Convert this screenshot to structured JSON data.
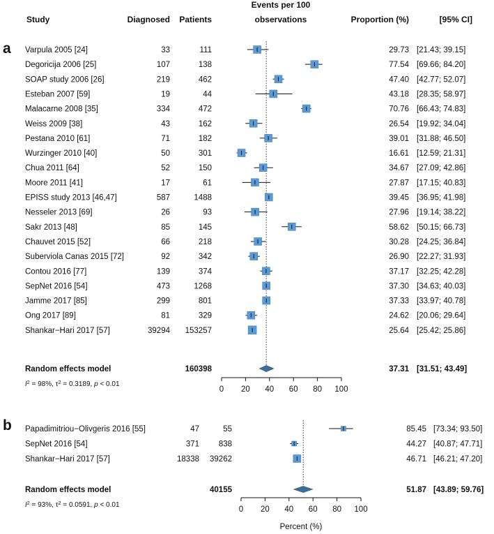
{
  "chart_data": [
    {
      "type": "forest",
      "panel_label": "a",
      "headers": {
        "study": "Study",
        "diagnosed": "Diagnosed",
        "patients": "Patients",
        "events_line1": "Events per 100",
        "events_line2": "observations",
        "proportion": "Proportion (%)",
        "ci": "[95% CI]"
      },
      "studies": [
        {
          "name": "Varpula 2005",
          "ref": "[24]",
          "diagnosed": "33",
          "patients": "111",
          "proportion": 29.73,
          "lower": 21.43,
          "upper": 39.15,
          "proportion_text": "29.73",
          "ci_text": "[21.43; 39.15]"
        },
        {
          "name": "Degoricija 2006",
          "ref": "[25]",
          "diagnosed": "107",
          "patients": "138",
          "proportion": 77.54,
          "lower": 69.66,
          "upper": 84.2,
          "proportion_text": "77.54",
          "ci_text": "[69.66; 84.20]"
        },
        {
          "name": "SOAP study 2006",
          "ref": "[26]",
          "diagnosed": "219",
          "patients": "462",
          "proportion": 47.4,
          "lower": 42.77,
          "upper": 52.07,
          "proportion_text": "47.40",
          "ci_text": "[42.77; 52.07]"
        },
        {
          "name": "Esteban 2007",
          "ref": "[59]",
          "diagnosed": "19",
          "patients": "44",
          "proportion": 43.18,
          "lower": 28.35,
          "upper": 58.97,
          "proportion_text": "43.18",
          "ci_text": "[28.35; 58.97]"
        },
        {
          "name": "Malacarne 2008",
          "ref": "[35]",
          "diagnosed": "334",
          "patients": "472",
          "proportion": 70.76,
          "lower": 66.43,
          "upper": 74.83,
          "proportion_text": "70.76",
          "ci_text": "[66.43; 74.83]"
        },
        {
          "name": "Weiss 2009",
          "ref": "[38]",
          "diagnosed": "43",
          "patients": "162",
          "proportion": 26.54,
          "lower": 19.92,
          "upper": 34.04,
          "proportion_text": "26.54",
          "ci_text": "[19.92; 34.04]"
        },
        {
          "name": "Pestana 2010",
          "ref": "[61]",
          "diagnosed": "71",
          "patients": "182",
          "proportion": 39.01,
          "lower": 31.88,
          "upper": 46.5,
          "proportion_text": "39.01",
          "ci_text": "[31.88; 46.50]"
        },
        {
          "name": "Wurzinger 2010",
          "ref": "[40]",
          "diagnosed": "50",
          "patients": "301",
          "proportion": 16.61,
          "lower": 12.59,
          "upper": 21.31,
          "proportion_text": "16.61",
          "ci_text": "[12.59; 21.31]"
        },
        {
          "name": "Chua 2011",
          "ref": "[64]",
          "diagnosed": "52",
          "patients": "150",
          "proportion": 34.67,
          "lower": 27.09,
          "upper": 42.86,
          "proportion_text": "34.67",
          "ci_text": "[27.09; 42.86]"
        },
        {
          "name": "Moore 2011",
          "ref": "[41]",
          "diagnosed": "17",
          "patients": "61",
          "proportion": 27.87,
          "lower": 17.15,
          "upper": 40.83,
          "proportion_text": "27.87",
          "ci_text": "[17.15; 40.83]"
        },
        {
          "name": "EPISS study 2013",
          "ref": "[46,47]",
          "diagnosed": "587",
          "patients": "1488",
          "proportion": 39.45,
          "lower": 36.95,
          "upper": 41.98,
          "proportion_text": "39.45",
          "ci_text": "[36.95; 41.98]"
        },
        {
          "name": "Nesseler 2013",
          "ref": "[69]",
          "diagnosed": "26",
          "patients": "93",
          "proportion": 27.96,
          "lower": 19.14,
          "upper": 38.22,
          "proportion_text": "27.96",
          "ci_text": "[19.14; 38.22]"
        },
        {
          "name": "Sakr 2013",
          "ref": "[48]",
          "diagnosed": "85",
          "patients": "145",
          "proportion": 58.62,
          "lower": 50.15,
          "upper": 66.73,
          "proportion_text": "58.62",
          "ci_text": "[50.15; 66.73]"
        },
        {
          "name": "Chauvet 2015",
          "ref": "[52]",
          "diagnosed": "66",
          "patients": "218",
          "proportion": 30.28,
          "lower": 24.25,
          "upper": 36.84,
          "proportion_text": "30.28",
          "ci_text": "[24.25; 36.84]"
        },
        {
          "name": "Suberviola Canas 2015",
          "ref": "[72]",
          "diagnosed": "92",
          "patients": "342",
          "proportion": 26.9,
          "lower": 22.27,
          "upper": 31.93,
          "proportion_text": "26.90",
          "ci_text": "[22.27; 31.93]"
        },
        {
          "name": "Contou 2016",
          "ref": "[77]",
          "diagnosed": "139",
          "patients": "374",
          "proportion": 37.17,
          "lower": 32.25,
          "upper": 42.28,
          "proportion_text": "37.17",
          "ci_text": "[32.25; 42.28]"
        },
        {
          "name": "SepNet 2016",
          "ref": "[54]",
          "diagnosed": "473",
          "patients": "1268",
          "proportion": 37.3,
          "lower": 34.63,
          "upper": 40.03,
          "proportion_text": "37.30",
          "ci_text": "[34.63; 40.03]"
        },
        {
          "name": "Jamme 2017",
          "ref": "[85]",
          "diagnosed": "299",
          "patients": "801",
          "proportion": 37.33,
          "lower": 33.97,
          "upper": 40.78,
          "proportion_text": "37.33",
          "ci_text": "[33.97; 40.78]"
        },
        {
          "name": "Ong 2017",
          "ref": "[89]",
          "diagnosed": "81",
          "patients": "329",
          "proportion": 24.62,
          "lower": 20.06,
          "upper": 29.64,
          "proportion_text": "24.62",
          "ci_text": "[20.06; 29.64]"
        },
        {
          "name": "Shankar−Hari 2017",
          "ref": "[57]",
          "diagnosed": "39294",
          "patients": "153257",
          "proportion": 25.64,
          "lower": 25.42,
          "upper": 25.86,
          "proportion_text": "25.64",
          "ci_text": "[25.42; 25.86]"
        }
      ],
      "pooled": {
        "label": "Random effects model",
        "patients": "160398",
        "proportion": 37.31,
        "lower": 31.51,
        "upper": 43.49,
        "proportion_text": "37.31",
        "ci_text": "[31.51; 43.49]"
      },
      "heterogeneity": {
        "i2": "98%",
        "tau2": "0.3189",
        "p": "< 0.01"
      },
      "x_ticks": [
        0,
        20,
        40,
        60,
        80,
        100
      ],
      "xlim": [
        0,
        100
      ],
      "xlabel": "",
      "box_color": "#5b9bd5",
      "diamond_color": "#3c6e9a"
    },
    {
      "type": "forest",
      "panel_label": "b",
      "studies": [
        {
          "name": "Papadimitriou−Olivgeris 2016",
          "ref": "[55]",
          "diagnosed": "47",
          "patients": "55",
          "proportion": 85.45,
          "lower": 73.34,
          "upper": 93.5,
          "proportion_text": "85.45",
          "ci_text": "[73.34; 93.50]"
        },
        {
          "name": "SepNet 2016",
          "ref": "[54]",
          "diagnosed": "371",
          "patients": "838",
          "proportion": 44.27,
          "lower": 40.87,
          "upper": 47.71,
          "proportion_text": "44.27",
          "ci_text": "[40.87; 47.71]"
        },
        {
          "name": "Shankar−Hari 2017",
          "ref": "[57]",
          "diagnosed": "18338",
          "patients": "39262",
          "proportion": 46.71,
          "lower": 46.21,
          "upper": 47.2,
          "proportion_text": "46.71",
          "ci_text": "[46.21; 47.20]"
        }
      ],
      "pooled": {
        "label": "Random effects model",
        "patients": "40155",
        "proportion": 51.87,
        "lower": 43.89,
        "upper": 59.76,
        "proportion_text": "51.87",
        "ci_text": "[43.89; 59.76]"
      },
      "heterogeneity": {
        "i2": "93%",
        "tau2": "0.0591",
        "p": "< 0.01"
      },
      "x_ticks": [
        0,
        20,
        40,
        60,
        80,
        100
      ],
      "xlim": [
        0,
        100
      ],
      "xlabel": "Percent (%)",
      "box_color": "#5b9bd5",
      "diamond_color": "#3c6e9a"
    }
  ]
}
